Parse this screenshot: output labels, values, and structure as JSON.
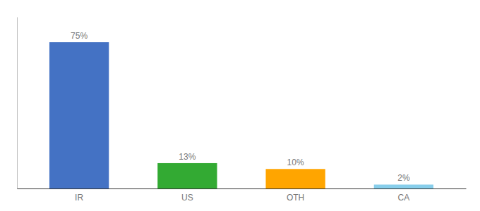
{
  "chart_data": {
    "type": "bar",
    "categories": [
      "IR",
      "US",
      "OTH",
      "CA"
    ],
    "values": [
      75,
      13,
      10,
      2
    ],
    "value_labels": [
      "75%",
      "13%",
      "10%",
      "2%"
    ],
    "colors": [
      "#4472C4",
      "#33AA33",
      "#FFA500",
      "#87CEEB"
    ],
    "ylim": [
      0,
      88
    ],
    "data_labels": true,
    "tick_labels": "x",
    "grid": false
  }
}
